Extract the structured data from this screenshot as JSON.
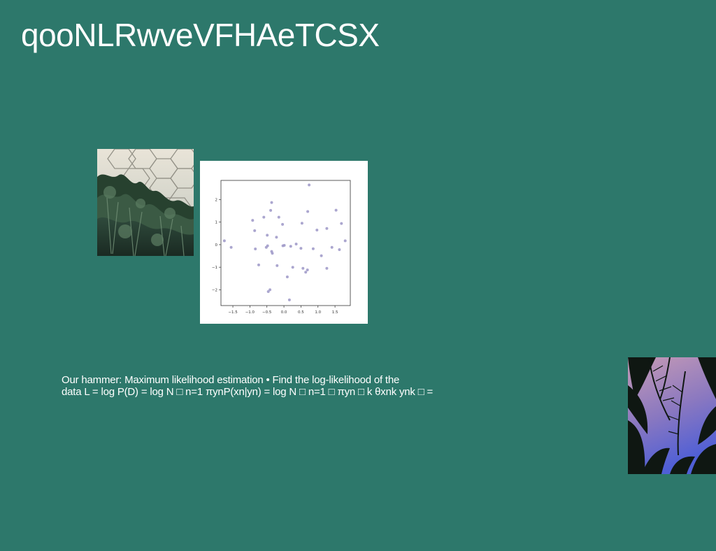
{
  "slide": {
    "title": "qooNLRwveVFHAeTCSX",
    "body_lines": [
      "Our hammer: Maximum likelihood estimation • Find the log-likelihood of the",
      "data L = log P(D) = log N □ n=1 πynP(xn|yn) = log N □ n=1 □ πyn □ k θxnk ynk □ ="
    ]
  },
  "images": {
    "left_photo": "greenhouse-dome-plants",
    "right_photo": "palm-leaves-purple-sky"
  },
  "chart_data": {
    "type": "scatter",
    "title": "",
    "xlabel": "",
    "ylabel": "",
    "xlim": [
      -1.85,
      1.95
    ],
    "ylim": [
      -2.7,
      2.85
    ],
    "xticks": [
      -1.5,
      -1.0,
      -0.5,
      0.0,
      0.5,
      1.0,
      1.5
    ],
    "xtick_labels": [
      "−1.5",
      "−1.0",
      "−0.5",
      "0.0",
      "0.5",
      "1.0",
      "1.5"
    ],
    "yticks": [
      -2,
      -1,
      0,
      1,
      2
    ],
    "ytick_labels": [
      "−2",
      "−1",
      "0",
      "1",
      "2"
    ],
    "grid": false,
    "point_color": "#9c97c7",
    "points": [
      {
        "x": -1.75,
        "y": 0.17
      },
      {
        "x": -1.55,
        "y": -0.12
      },
      {
        "x": -0.92,
        "y": 1.08
      },
      {
        "x": -0.86,
        "y": 0.62
      },
      {
        "x": -0.84,
        "y": -0.19
      },
      {
        "x": -0.74,
        "y": -0.9
      },
      {
        "x": -0.59,
        "y": 1.22
      },
      {
        "x": -0.52,
        "y": -0.12
      },
      {
        "x": -0.49,
        "y": 0.42
      },
      {
        "x": -0.48,
        "y": -0.05
      },
      {
        "x": -0.46,
        "y": -2.08
      },
      {
        "x": -0.41,
        "y": -2.0
      },
      {
        "x": -0.39,
        "y": 1.52
      },
      {
        "x": -0.36,
        "y": 1.87
      },
      {
        "x": -0.36,
        "y": -0.3
      },
      {
        "x": -0.34,
        "y": -0.38
      },
      {
        "x": -0.22,
        "y": 0.33
      },
      {
        "x": -0.2,
        "y": -0.93
      },
      {
        "x": -0.15,
        "y": 1.22
      },
      {
        "x": -0.04,
        "y": 0.9
      },
      {
        "x": -0.03,
        "y": -0.05
      },
      {
        "x": 0.01,
        "y": -0.03
      },
      {
        "x": 0.1,
        "y": -1.43
      },
      {
        "x": 0.16,
        "y": -2.45
      },
      {
        "x": 0.2,
        "y": -0.07
      },
      {
        "x": 0.26,
        "y": -1.0
      },
      {
        "x": 0.36,
        "y": 0.03
      },
      {
        "x": 0.5,
        "y": -0.16
      },
      {
        "x": 0.53,
        "y": 0.95
      },
      {
        "x": 0.56,
        "y": -1.05
      },
      {
        "x": 0.64,
        "y": -1.22
      },
      {
        "x": 0.69,
        "y": -1.12
      },
      {
        "x": 0.7,
        "y": 1.47
      },
      {
        "x": 0.74,
        "y": 2.65
      },
      {
        "x": 0.86,
        "y": -0.18
      },
      {
        "x": 0.97,
        "y": 0.65
      },
      {
        "x": 1.1,
        "y": -0.49
      },
      {
        "x": 1.26,
        "y": 0.72
      },
      {
        "x": 1.26,
        "y": -1.05
      },
      {
        "x": 1.41,
        "y": -0.12
      },
      {
        "x": 1.53,
        "y": 1.53
      },
      {
        "x": 1.63,
        "y": -0.22
      },
      {
        "x": 1.69,
        "y": 0.94
      },
      {
        "x": 1.8,
        "y": 0.17
      }
    ]
  }
}
